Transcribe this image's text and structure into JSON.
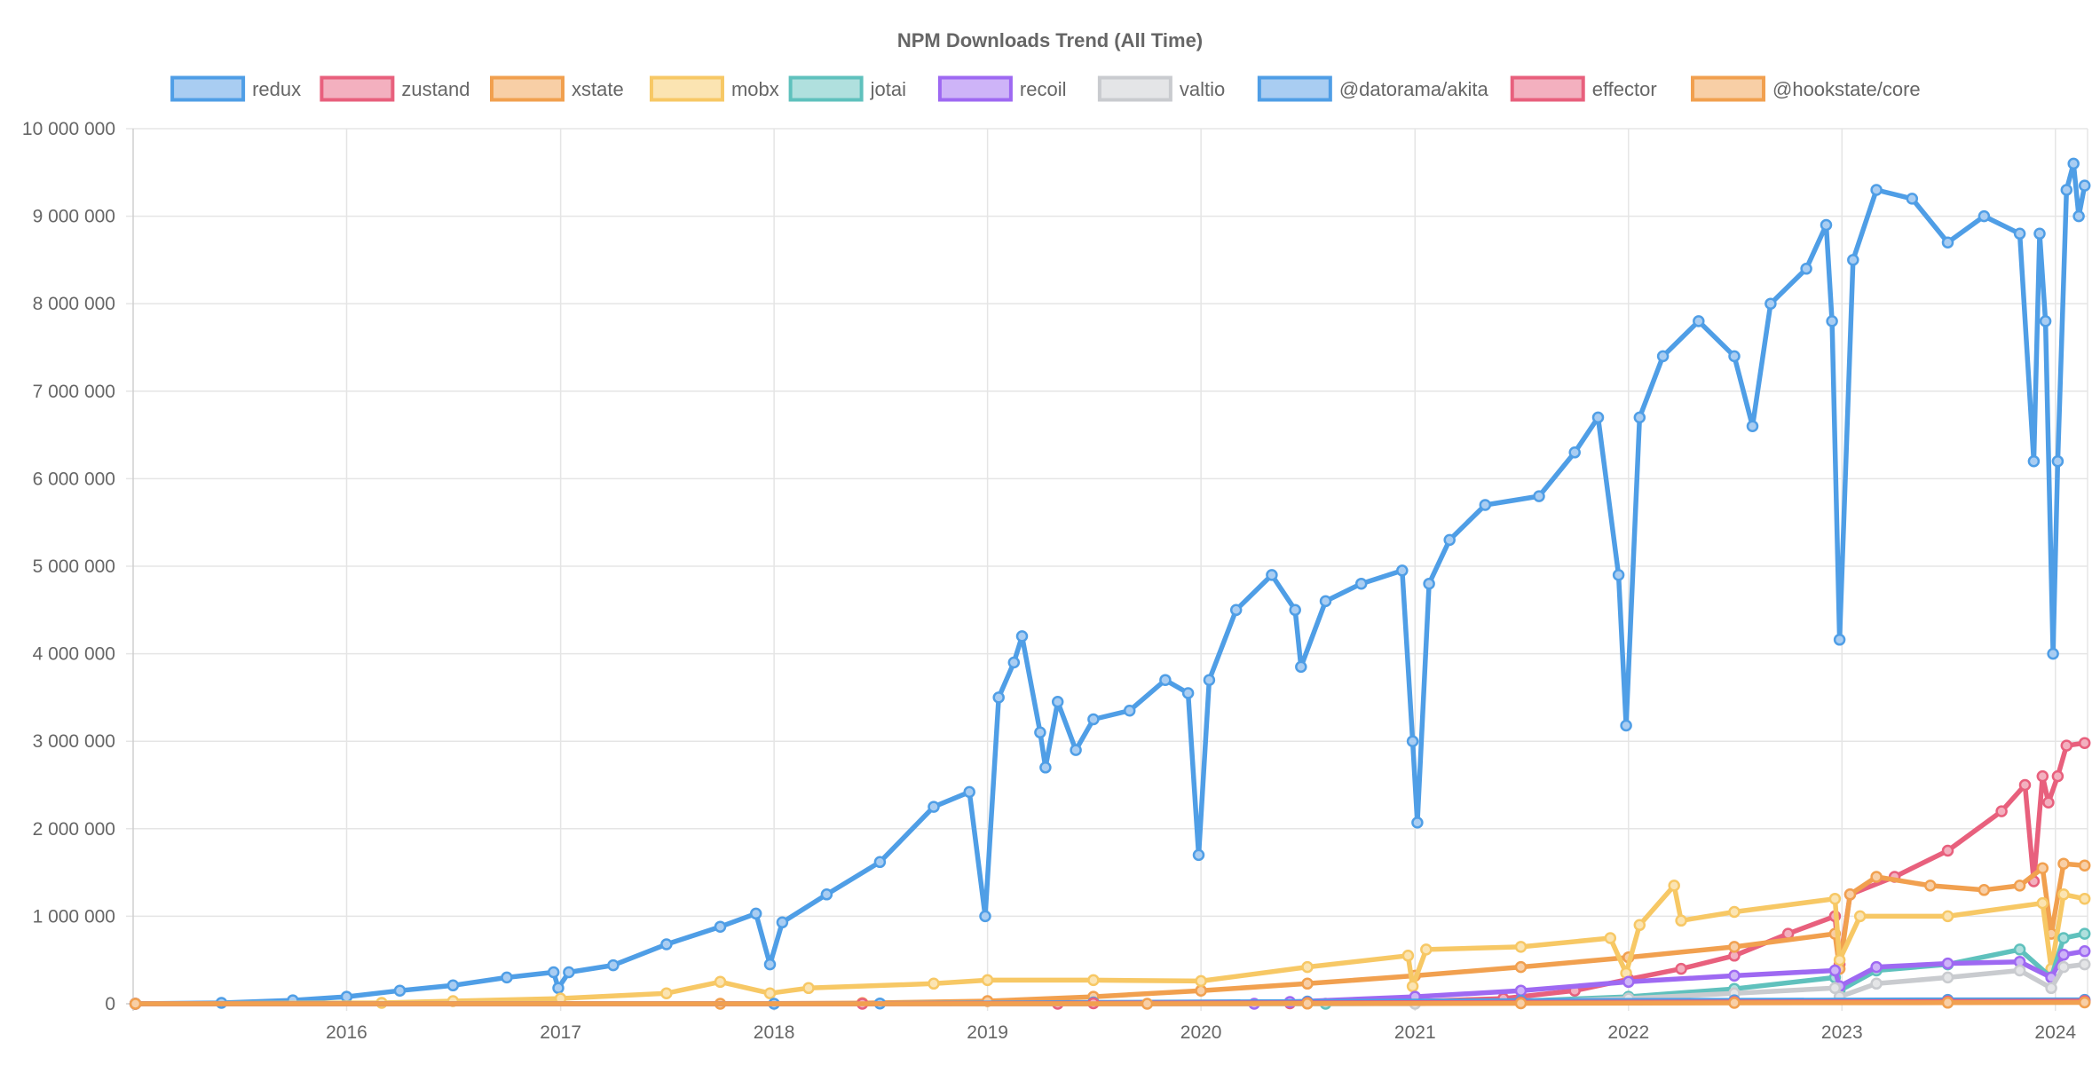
{
  "chart_data": {
    "type": "line",
    "title": "NPM Downloads Trend (All Time)",
    "legend_placement": "top",
    "grid": true,
    "x_range": [
      "2015-01-01",
      "2024-02-25"
    ],
    "x_ticks": [
      {
        "label": "2016",
        "date": "2016-01-01"
      },
      {
        "label": "2017",
        "date": "2017-01-01"
      },
      {
        "label": "2018",
        "date": "2018-01-01"
      },
      {
        "label": "2019",
        "date": "2019-01-01"
      },
      {
        "label": "2020",
        "date": "2020-01-01"
      },
      {
        "label": "2021",
        "date": "2021-01-01"
      },
      {
        "label": "2022",
        "date": "2022-01-01"
      },
      {
        "label": "2023",
        "date": "2023-01-01"
      },
      {
        "label": "2024",
        "date": "2024-01-01"
      }
    ],
    "ylim": [
      0,
      10000000
    ],
    "y_ticks": [
      {
        "label": "0",
        "value": 0
      },
      {
        "label": "1 000 000",
        "value": 1000000
      },
      {
        "label": "2 000 000",
        "value": 2000000
      },
      {
        "label": "3 000 000",
        "value": 3000000
      },
      {
        "label": "4 000 000",
        "value": 4000000
      },
      {
        "label": "5 000 000",
        "value": 5000000
      },
      {
        "label": "6 000 000",
        "value": 6000000
      },
      {
        "label": "7 000 000",
        "value": 7000000
      },
      {
        "label": "8 000 000",
        "value": 8000000
      },
      {
        "label": "9 000 000",
        "value": 9000000
      },
      {
        "label": "10 000 000",
        "value": 10000000
      }
    ],
    "series": [
      {
        "name": "redux",
        "color": "#4f9ee6",
        "fill": "#a9cdf2",
        "points": [
          [
            "2015-01-05",
            0
          ],
          [
            "2015-06-01",
            10000
          ],
          [
            "2015-10-01",
            40000
          ],
          [
            "2016-01-01",
            80000
          ],
          [
            "2016-04-01",
            150000
          ],
          [
            "2016-07-01",
            210000
          ],
          [
            "2016-10-01",
            300000
          ],
          [
            "2016-12-20",
            360000
          ],
          [
            "2016-12-28",
            180000
          ],
          [
            "2017-01-15",
            360000
          ],
          [
            "2017-04-01",
            440000
          ],
          [
            "2017-07-01",
            680000
          ],
          [
            "2017-10-01",
            880000
          ],
          [
            "2017-12-01",
            1030000
          ],
          [
            "2017-12-25",
            450000
          ],
          [
            "2018-01-15",
            930000
          ],
          [
            "2018-04-01",
            1250000
          ],
          [
            "2018-07-01",
            1620000
          ],
          [
            "2018-10-01",
            2250000
          ],
          [
            "2018-12-01",
            2420000
          ],
          [
            "2018-12-28",
            1000000
          ],
          [
            "2019-01-20",
            3500000
          ],
          [
            "2019-02-15",
            3900000
          ],
          [
            "2019-03-01",
            4200000
          ],
          [
            "2019-04-01",
            3100000
          ],
          [
            "2019-04-10",
            2700000
          ],
          [
            "2019-05-01",
            3450000
          ],
          [
            "2019-06-01",
            2900000
          ],
          [
            "2019-07-01",
            3250000
          ],
          [
            "2019-09-01",
            3350000
          ],
          [
            "2019-11-01",
            3700000
          ],
          [
            "2019-12-10",
            3550000
          ],
          [
            "2019-12-28",
            1700000
          ],
          [
            "2020-01-15",
            3700000
          ],
          [
            "2020-03-01",
            4500000
          ],
          [
            "2020-05-01",
            4900000
          ],
          [
            "2020-06-10",
            4500000
          ],
          [
            "2020-06-20",
            3850000
          ],
          [
            "2020-08-01",
            4600000
          ],
          [
            "2020-10-01",
            4800000
          ],
          [
            "2020-12-10",
            4950000
          ],
          [
            "2020-12-28",
            3000000
          ],
          [
            "2021-01-05",
            2070000
          ],
          [
            "2021-01-25",
            4800000
          ],
          [
            "2021-03-01",
            5300000
          ],
          [
            "2021-05-01",
            5700000
          ],
          [
            "2021-08-01",
            5800000
          ],
          [
            "2021-10-01",
            6300000
          ],
          [
            "2021-11-10",
            6700000
          ],
          [
            "2021-12-15",
            4900000
          ],
          [
            "2021-12-28",
            3180000
          ],
          [
            "2022-01-20",
            6700000
          ],
          [
            "2022-03-01",
            7400000
          ],
          [
            "2022-05-01",
            7800000
          ],
          [
            "2022-07-01",
            7400000
          ],
          [
            "2022-08-01",
            6600000
          ],
          [
            "2022-09-01",
            8000000
          ],
          [
            "2022-11-01",
            8400000
          ],
          [
            "2022-12-05",
            8900000
          ],
          [
            "2022-12-15",
            7800000
          ],
          [
            "2022-12-28",
            4160000
          ],
          [
            "2023-01-20",
            8500000
          ],
          [
            "2023-03-01",
            9300000
          ],
          [
            "2023-05-01",
            9200000
          ],
          [
            "2023-07-01",
            8700000
          ],
          [
            "2023-09-01",
            9000000
          ],
          [
            "2023-11-01",
            8800000
          ],
          [
            "2023-11-25",
            6200000
          ],
          [
            "2023-12-05",
            8800000
          ],
          [
            "2023-12-15",
            7800000
          ],
          [
            "2023-12-28",
            4000000
          ],
          [
            "2024-01-05",
            6200000
          ],
          [
            "2024-01-20",
            9300000
          ],
          [
            "2024-02-01",
            9600000
          ],
          [
            "2024-02-10",
            9000000
          ],
          [
            "2024-02-20",
            9350000
          ]
        ]
      },
      {
        "name": "zustand",
        "color": "#e8607d",
        "fill": "#f3b0bf",
        "points": [
          [
            "2015-01-05",
            0
          ],
          [
            "2019-05-01",
            0
          ],
          [
            "2020-06-01",
            5000
          ],
          [
            "2021-01-01",
            25000
          ],
          [
            "2021-06-01",
            60000
          ],
          [
            "2021-10-01",
            150000
          ],
          [
            "2022-01-01",
            280000
          ],
          [
            "2022-04-01",
            400000
          ],
          [
            "2022-07-01",
            550000
          ],
          [
            "2022-10-01",
            800000
          ],
          [
            "2022-12-20",
            1000000
          ],
          [
            "2022-12-28",
            450000
          ],
          [
            "2023-01-15",
            1250000
          ],
          [
            "2023-04-01",
            1450000
          ],
          [
            "2023-07-01",
            1750000
          ],
          [
            "2023-10-01",
            2200000
          ],
          [
            "2023-11-10",
            2500000
          ],
          [
            "2023-11-25",
            1400000
          ],
          [
            "2023-12-10",
            2600000
          ],
          [
            "2023-12-20",
            2300000
          ],
          [
            "2024-01-05",
            2600000
          ],
          [
            "2024-01-20",
            2950000
          ],
          [
            "2024-02-20",
            2980000
          ]
        ]
      },
      {
        "name": "xstate",
        "color": "#f1a04f",
        "fill": "#f8cfa6",
        "points": [
          [
            "2015-01-05",
            0
          ],
          [
            "2017-10-01",
            0
          ],
          [
            "2018-06-01",
            8000
          ],
          [
            "2019-01-01",
            30000
          ],
          [
            "2019-07-01",
            80000
          ],
          [
            "2020-01-01",
            150000
          ],
          [
            "2020-07-01",
            230000
          ],
          [
            "2021-01-01",
            320000
          ],
          [
            "2021-07-01",
            420000
          ],
          [
            "2022-01-01",
            530000
          ],
          [
            "2022-07-01",
            650000
          ],
          [
            "2022-12-20",
            800000
          ],
          [
            "2022-12-28",
            400000
          ],
          [
            "2023-01-15",
            1250000
          ],
          [
            "2023-03-01",
            1450000
          ],
          [
            "2023-06-01",
            1350000
          ],
          [
            "2023-09-01",
            1300000
          ],
          [
            "2023-11-01",
            1350000
          ],
          [
            "2023-12-10",
            1550000
          ],
          [
            "2023-12-25",
            800000
          ],
          [
            "2024-01-15",
            1600000
          ],
          [
            "2024-02-20",
            1580000
          ]
        ]
      },
      {
        "name": "mobx",
        "color": "#f7c865",
        "fill": "#fbe4b2",
        "points": [
          [
            "2015-01-05",
            0
          ],
          [
            "2016-03-01",
            10000
          ],
          [
            "2016-07-01",
            30000
          ],
          [
            "2017-01-01",
            60000
          ],
          [
            "2017-07-01",
            120000
          ],
          [
            "2017-10-01",
            250000
          ],
          [
            "2017-12-25",
            120000
          ],
          [
            "2018-03-01",
            180000
          ],
          [
            "2018-10-01",
            230000
          ],
          [
            "2019-01-01",
            270000
          ],
          [
            "2019-07-01",
            270000
          ],
          [
            "2020-01-01",
            260000
          ],
          [
            "2020-07-01",
            420000
          ],
          [
            "2020-12-20",
            550000
          ],
          [
            "2020-12-28",
            200000
          ],
          [
            "2021-01-20",
            620000
          ],
          [
            "2021-07-01",
            650000
          ],
          [
            "2021-12-01",
            750000
          ],
          [
            "2021-12-28",
            350000
          ],
          [
            "2022-01-20",
            900000
          ],
          [
            "2022-03-20",
            1350000
          ],
          [
            "2022-04-01",
            950000
          ],
          [
            "2022-07-01",
            1050000
          ],
          [
            "2022-12-20",
            1200000
          ],
          [
            "2022-12-28",
            500000
          ],
          [
            "2023-02-01",
            1000000
          ],
          [
            "2023-07-01",
            1000000
          ],
          [
            "2023-12-10",
            1150000
          ],
          [
            "2023-12-25",
            400000
          ],
          [
            "2024-01-15",
            1250000
          ],
          [
            "2024-02-20",
            1200000
          ]
        ]
      },
      {
        "name": "jotai",
        "color": "#5fc1bd",
        "fill": "#b0e0de",
        "points": [
          [
            "2015-01-05",
            0
          ],
          [
            "2020-08-01",
            0
          ],
          [
            "2021-01-01",
            5000
          ],
          [
            "2021-07-01",
            30000
          ],
          [
            "2022-01-01",
            80000
          ],
          [
            "2022-07-01",
            170000
          ],
          [
            "2022-12-20",
            300000
          ],
          [
            "2022-12-28",
            150000
          ],
          [
            "2023-03-01",
            380000
          ],
          [
            "2023-07-01",
            450000
          ],
          [
            "2023-11-01",
            620000
          ],
          [
            "2023-12-25",
            300000
          ],
          [
            "2024-01-15",
            750000
          ],
          [
            "2024-02-20",
            800000
          ]
        ]
      },
      {
        "name": "recoil",
        "color": "#9e69f2",
        "fill": "#ceb4f8",
        "points": [
          [
            "2015-01-05",
            0
          ],
          [
            "2020-04-01",
            0
          ],
          [
            "2020-06-01",
            20000
          ],
          [
            "2021-01-01",
            80000
          ],
          [
            "2021-07-01",
            150000
          ],
          [
            "2022-01-01",
            250000
          ],
          [
            "2022-07-01",
            320000
          ],
          [
            "2022-12-20",
            380000
          ],
          [
            "2022-12-28",
            200000
          ],
          [
            "2023-03-01",
            420000
          ],
          [
            "2023-07-01",
            460000
          ],
          [
            "2023-11-01",
            480000
          ],
          [
            "2023-12-25",
            300000
          ],
          [
            "2024-01-15",
            560000
          ],
          [
            "2024-02-20",
            600000
          ]
        ]
      },
      {
        "name": "valtio",
        "color": "#c9cbcf",
        "fill": "#e4e5e7",
        "points": [
          [
            "2015-01-05",
            0
          ],
          [
            "2021-01-01",
            0
          ],
          [
            "2021-07-01",
            20000
          ],
          [
            "2022-01-01",
            60000
          ],
          [
            "2022-07-01",
            120000
          ],
          [
            "2022-12-20",
            180000
          ],
          [
            "2022-12-28",
            80000
          ],
          [
            "2023-03-01",
            230000
          ],
          [
            "2023-07-01",
            300000
          ],
          [
            "2023-11-01",
            380000
          ],
          [
            "2023-12-25",
            180000
          ],
          [
            "2024-01-15",
            420000
          ],
          [
            "2024-02-20",
            450000
          ]
        ]
      },
      {
        "name": "@datorama/akita",
        "color": "#4f9ee6",
        "fill": "#a9cdf2",
        "points": [
          [
            "2015-01-05",
            0
          ],
          [
            "2018-01-01",
            0
          ],
          [
            "2018-07-01",
            3000
          ],
          [
            "2019-07-01",
            15000
          ],
          [
            "2020-07-01",
            25000
          ],
          [
            "2021-07-01",
            35000
          ],
          [
            "2022-07-01",
            40000
          ],
          [
            "2023-07-01",
            45000
          ],
          [
            "2024-02-20",
            45000
          ]
        ]
      },
      {
        "name": "effector",
        "color": "#e8607d",
        "fill": "#f3b0bf",
        "points": [
          [
            "2015-01-05",
            0
          ],
          [
            "2018-06-01",
            0
          ],
          [
            "2019-07-01",
            5000
          ],
          [
            "2020-07-01",
            10000
          ],
          [
            "2021-07-01",
            15000
          ],
          [
            "2022-07-01",
            20000
          ],
          [
            "2023-07-01",
            25000
          ],
          [
            "2024-02-20",
            30000
          ]
        ]
      },
      {
        "name": "@hookstate/core",
        "color": "#f1a04f",
        "fill": "#f8cfa6",
        "points": [
          [
            "2015-01-05",
            0
          ],
          [
            "2019-10-01",
            0
          ],
          [
            "2020-07-01",
            2000
          ],
          [
            "2021-07-01",
            5000
          ],
          [
            "2022-07-01",
            10000
          ],
          [
            "2023-07-01",
            12000
          ],
          [
            "2024-02-20",
            15000
          ]
        ]
      }
    ]
  }
}
